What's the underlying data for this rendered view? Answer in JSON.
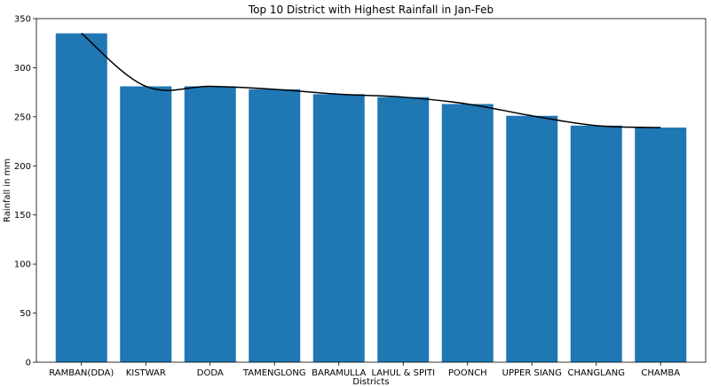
{
  "chart_data": {
    "type": "bar",
    "title": "Top 10 District with Highest Rainfall in Jan-Feb",
    "xlabel": "Districts",
    "ylabel": "Rainfall in mm",
    "categories": [
      "RAMBAN(DDA)",
      "KISTWAR",
      "DODA",
      "TAMENGLONG",
      "BARAMULLA",
      "LAHUL & SPITI",
      "POONCH",
      "UPPER SIANG",
      "CHANGLANG",
      "CHAMBA"
    ],
    "values": [
      335,
      281,
      281,
      278,
      273,
      270,
      263,
      251,
      241,
      239
    ],
    "line_values": [
      335,
      281,
      281,
      278,
      273,
      270,
      263,
      251,
      241,
      239
    ],
    "ylim": [
      0,
      350
    ],
    "yticks": [
      0,
      50,
      100,
      150,
      200,
      250,
      300,
      350
    ],
    "grid": false,
    "colors": {
      "bar": "#1f77b4",
      "line": "#000000",
      "axis": "#000000"
    }
  }
}
